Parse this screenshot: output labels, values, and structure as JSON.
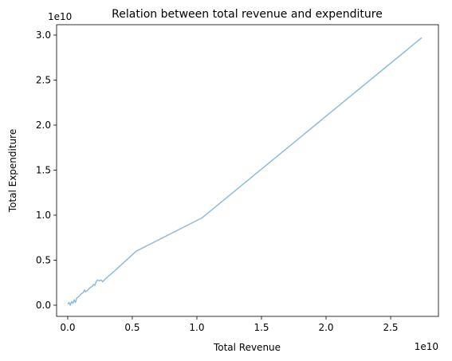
{
  "chart_data": {
    "type": "line",
    "title": "Relation between total revenue and expenditure",
    "xlabel": "Total Revenue",
    "ylabel": "Total Expenditure",
    "x_offset_label": "1e10",
    "y_offset_label": "1e10",
    "x": [
      0,
      0.01,
      0.02,
      0.03,
      0.04,
      0.05,
      0.06,
      0.07,
      0.09,
      0.1,
      0.12,
      0.13,
      0.135,
      0.15,
      0.17,
      0.19,
      0.2,
      0.21,
      0.22,
      0.23,
      0.245,
      0.26,
      0.27,
      0.29,
      0.33,
      0.37,
      0.53,
      1.04,
      2.74
    ],
    "values": [
      0.01,
      0.03,
      0,
      0.04,
      0.02,
      0.06,
      0.03,
      0.08,
      0.1,
      0.12,
      0.14,
      0.17,
      0.15,
      0.16,
      0.19,
      0.21,
      0.23,
      0.22,
      0.26,
      0.28,
      0.27,
      0.28,
      0.26,
      0.29,
      0.34,
      0.39,
      0.6,
      0.97,
      2.97
    ],
    "color": "#8fbbd9",
    "xlim": [
      -0.086,
      2.87
    ],
    "ylim": [
      -0.124,
      3.115
    ],
    "xticks": [
      {
        "value": 0,
        "label": "0.0"
      },
      0.5,
      {
        "value": 1,
        "label": "1.0"
      },
      1.5,
      {
        "value": 2,
        "label": "2.0"
      },
      2.5
    ],
    "yticks": [
      {
        "value": 0,
        "label": "0.0"
      },
      0.5,
      {
        "value": 1,
        "label": "1.0"
      },
      1.5,
      {
        "value": 2,
        "label": "2.0"
      },
      2.5,
      {
        "value": 3,
        "label": "3.0"
      }
    ],
    "grid": false
  }
}
